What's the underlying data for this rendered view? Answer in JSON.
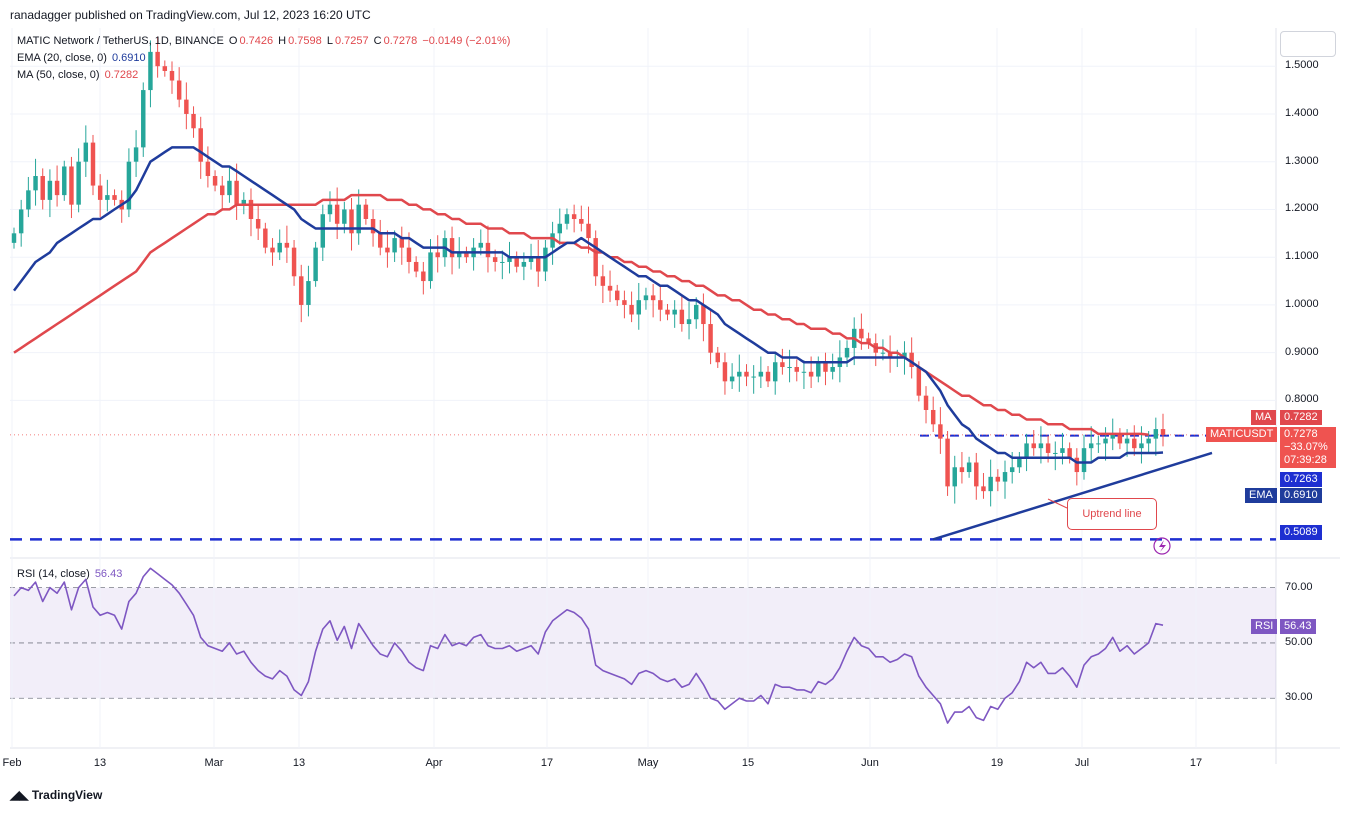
{
  "header": {
    "text": "ranadagger published on TradingView.com, Jul 12, 2023 16:20 UTC"
  },
  "legend": {
    "symbol": "MATIC Network / TetherUS, 1D, BINANCE",
    "o_label": "O",
    "o": "0.7426",
    "h_label": "H",
    "h": "0.7598",
    "l_label": "L",
    "l": "0.7257",
    "c_label": "C",
    "c": "0.7278",
    "change": "−0.0149 (−2.01%)",
    "ema_label": "EMA (20, close, 0)",
    "ema_value": "0.6910",
    "ma_label": "MA (50, close, 0)",
    "ma_value": "0.7282",
    "rsi_label": "RSI (14, close)",
    "rsi_value": "56.43"
  },
  "badges": {
    "ma_tag": "MA",
    "ma_value": "0.7282",
    "symbol_tag": "MATICUSDT",
    "price": "0.7278",
    "change_pct": "−33.07%",
    "countdown": "07:39:28",
    "level_upper": "0.7263",
    "ema_tag": "EMA",
    "ema_value": "0.6910",
    "level_lower": "0.5089",
    "rsi_tag": "RSI",
    "rsi_value": "56.43"
  },
  "annotation": {
    "uptrend": "Uptrend line"
  },
  "footer": {
    "brand": "TradingView"
  },
  "colors": {
    "up": "#26a69a",
    "down": "#ef5350",
    "ema": "#1f3c9c",
    "ma": "#e0484d",
    "rsi": "#7e57c2",
    "level": "#1e2fd1"
  },
  "chart_data": {
    "type": "candlestick",
    "title": "MATIC Network / TetherUS, 1D, BINANCE",
    "x_ticks": [
      "Feb",
      "13",
      "Mar",
      "13",
      "Apr",
      "17",
      "May",
      "15",
      "Jun",
      "19",
      "Jul",
      "17"
    ],
    "y_ticks": [
      "1.5000",
      "1.4000",
      "1.3000",
      "1.2000",
      "1.1000",
      "1.0000",
      "0.9000",
      "0.8000"
    ],
    "ylim": [
      0.47,
      1.58
    ],
    "levels": [
      0.7263,
      0.5089
    ],
    "rsi_ticks": [
      "70.00",
      "50.00",
      "30.00"
    ],
    "rsi_ylim": [
      12,
      80
    ],
    "rsi_bands": [
      70,
      50,
      30
    ],
    "close": [
      1.15,
      1.2,
      1.24,
      1.27,
      1.22,
      1.26,
      1.23,
      1.29,
      1.21,
      1.3,
      1.34,
      1.25,
      1.22,
      1.23,
      1.22,
      1.2,
      1.3,
      1.33,
      1.45,
      1.53,
      1.5,
      1.49,
      1.47,
      1.43,
      1.4,
      1.37,
      1.3,
      1.27,
      1.25,
      1.23,
      1.26,
      1.21,
      1.22,
      1.18,
      1.16,
      1.12,
      1.11,
      1.13,
      1.12,
      1.06,
      1.0,
      1.05,
      1.12,
      1.19,
      1.21,
      1.17,
      1.2,
      1.15,
      1.21,
      1.18,
      1.15,
      1.12,
      1.11,
      1.14,
      1.12,
      1.09,
      1.07,
      1.05,
      1.11,
      1.1,
      1.14,
      1.1,
      1.11,
      1.1,
      1.12,
      1.13,
      1.1,
      1.09,
      1.09,
      1.1,
      1.08,
      1.09,
      1.1,
      1.07,
      1.12,
      1.15,
      1.17,
      1.19,
      1.18,
      1.17,
      1.14,
      1.06,
      1.04,
      1.03,
      1.01,
      1.0,
      0.98,
      1.01,
      1.02,
      1.01,
      0.99,
      0.98,
      0.99,
      0.96,
      0.97,
      1.0,
      0.96,
      0.9,
      0.88,
      0.84,
      0.85,
      0.86,
      0.85,
      0.85,
      0.86,
      0.84,
      0.88,
      0.87,
      0.87,
      0.86,
      0.86,
      0.85,
      0.88,
      0.86,
      0.87,
      0.89,
      0.91,
      0.95,
      0.93,
      0.92,
      0.9,
      0.9,
      0.89,
      0.89,
      0.9,
      0.87,
      0.81,
      0.78,
      0.75,
      0.72,
      0.62,
      0.66,
      0.65,
      0.67,
      0.62,
      0.61,
      0.64,
      0.63,
      0.65,
      0.66,
      0.68,
      0.71,
      0.7,
      0.71,
      0.69,
      0.69,
      0.7,
      0.68,
      0.65,
      0.7,
      0.71,
      0.71,
      0.72,
      0.73,
      0.71,
      0.72,
      0.7,
      0.71,
      0.72,
      0.74,
      0.7278
    ],
    "ema20": [
      1.03,
      1.05,
      1.07,
      1.09,
      1.1,
      1.11,
      1.13,
      1.14,
      1.15,
      1.16,
      1.17,
      1.18,
      1.18,
      1.19,
      1.2,
      1.21,
      1.22,
      1.24,
      1.27,
      1.3,
      1.31,
      1.32,
      1.33,
      1.33,
      1.33,
      1.33,
      1.32,
      1.31,
      1.3,
      1.29,
      1.29,
      1.28,
      1.27,
      1.26,
      1.25,
      1.24,
      1.23,
      1.22,
      1.21,
      1.2,
      1.18,
      1.17,
      1.16,
      1.16,
      1.16,
      1.16,
      1.16,
      1.16,
      1.16,
      1.16,
      1.16,
      1.15,
      1.15,
      1.15,
      1.14,
      1.14,
      1.13,
      1.12,
      1.12,
      1.12,
      1.12,
      1.11,
      1.11,
      1.11,
      1.11,
      1.11,
      1.11,
      1.11,
      1.11,
      1.1,
      1.1,
      1.1,
      1.1,
      1.1,
      1.1,
      1.11,
      1.12,
      1.13,
      1.13,
      1.14,
      1.13,
      1.12,
      1.11,
      1.1,
      1.09,
      1.08,
      1.07,
      1.06,
      1.06,
      1.05,
      1.04,
      1.04,
      1.03,
      1.02,
      1.01,
      1.01,
      1.0,
      0.99,
      0.98,
      0.96,
      0.95,
      0.94,
      0.93,
      0.92,
      0.91,
      0.9,
      0.9,
      0.89,
      0.89,
      0.89,
      0.88,
      0.88,
      0.88,
      0.88,
      0.88,
      0.88,
      0.88,
      0.89,
      0.89,
      0.89,
      0.89,
      0.89,
      0.89,
      0.89,
      0.89,
      0.88,
      0.87,
      0.86,
      0.84,
      0.82,
      0.79,
      0.77,
      0.75,
      0.74,
      0.72,
      0.71,
      0.7,
      0.69,
      0.69,
      0.68,
      0.68,
      0.68,
      0.68,
      0.68,
      0.68,
      0.68,
      0.68,
      0.68,
      0.67,
      0.67,
      0.67,
      0.68,
      0.68,
      0.68,
      0.68,
      0.69,
      0.69,
      0.69,
      0.69,
      0.69,
      0.691
    ],
    "ma50": [
      0.9,
      0.91,
      0.92,
      0.93,
      0.94,
      0.95,
      0.96,
      0.97,
      0.98,
      0.99,
      1.0,
      1.01,
      1.02,
      1.03,
      1.04,
      1.05,
      1.06,
      1.07,
      1.09,
      1.11,
      1.12,
      1.13,
      1.14,
      1.15,
      1.16,
      1.17,
      1.18,
      1.19,
      1.19,
      1.2,
      1.2,
      1.21,
      1.21,
      1.21,
      1.21,
      1.21,
      1.21,
      1.21,
      1.21,
      1.21,
      1.21,
      1.21,
      1.21,
      1.22,
      1.22,
      1.22,
      1.22,
      1.23,
      1.23,
      1.23,
      1.23,
      1.23,
      1.22,
      1.22,
      1.22,
      1.21,
      1.21,
      1.2,
      1.2,
      1.19,
      1.19,
      1.18,
      1.18,
      1.17,
      1.17,
      1.17,
      1.16,
      1.16,
      1.16,
      1.15,
      1.15,
      1.15,
      1.14,
      1.14,
      1.14,
      1.14,
      1.13,
      1.13,
      1.13,
      1.12,
      1.12,
      1.11,
      1.11,
      1.1,
      1.1,
      1.09,
      1.09,
      1.08,
      1.08,
      1.07,
      1.07,
      1.06,
      1.06,
      1.05,
      1.05,
      1.04,
      1.04,
      1.03,
      1.02,
      1.02,
      1.01,
      1.01,
      1.0,
      0.99,
      0.99,
      0.98,
      0.98,
      0.97,
      0.97,
      0.96,
      0.96,
      0.95,
      0.95,
      0.95,
      0.94,
      0.94,
      0.93,
      0.93,
      0.92,
      0.92,
      0.91,
      0.91,
      0.9,
      0.9,
      0.89,
      0.88,
      0.87,
      0.86,
      0.85,
      0.84,
      0.83,
      0.82,
      0.81,
      0.81,
      0.8,
      0.79,
      0.79,
      0.78,
      0.78,
      0.77,
      0.77,
      0.76,
      0.76,
      0.76,
      0.75,
      0.75,
      0.75,
      0.74,
      0.74,
      0.74,
      0.74,
      0.73,
      0.73,
      0.73,
      0.73,
      0.73,
      0.73,
      0.73,
      0.7282
    ],
    "rsi": [
      67,
      70,
      69,
      72,
      65,
      70,
      68,
      72,
      62,
      70,
      73,
      63,
      60,
      61,
      60,
      55,
      65,
      68,
      74,
      77,
      75,
      73,
      71,
      68,
      64,
      60,
      52,
      49,
      48,
      47,
      50,
      46,
      47,
      43,
      40,
      38,
      37,
      40,
      38,
      33,
      31,
      36,
      47,
      55,
      58,
      51,
      56,
      48,
      57,
      53,
      49,
      46,
      45,
      50,
      47,
      43,
      41,
      40,
      49,
      48,
      53,
      49,
      50,
      49,
      52,
      53,
      49,
      48,
      48,
      49,
      47,
      48,
      49,
      46,
      54,
      58,
      60,
      62,
      61,
      59,
      55,
      42,
      40,
      39,
      38,
      37,
      35,
      39,
      40,
      39,
      37,
      36,
      37,
      34,
      35,
      39,
      35,
      30,
      29,
      26,
      28,
      30,
      29,
      29,
      31,
      28,
      35,
      34,
      34,
      33,
      33,
      32,
      36,
      35,
      37,
      41,
      47,
      52,
      49,
      48,
      45,
      45,
      43,
      44,
      46,
      45,
      38,
      34,
      31,
      28,
      21,
      25,
      25,
      27,
      23,
      22,
      27,
      26,
      30,
      32,
      36,
      43,
      41,
      43,
      39,
      39,
      41,
      38,
      34,
      42,
      45,
      46,
      48,
      52,
      47,
      49,
      46,
      48,
      50,
      57,
      56.43
    ]
  }
}
